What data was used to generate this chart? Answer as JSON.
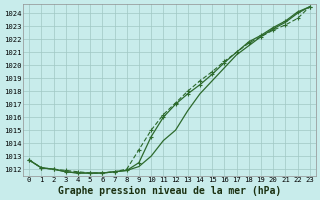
{
  "title": "Graphe pression niveau de la mer (hPa)",
  "bg_color": "#c8eceb",
  "grid_color": "#a0c8c4",
  "line_color": "#2d6a2d",
  "x": [
    0,
    1,
    2,
    3,
    4,
    5,
    6,
    7,
    8,
    9,
    10,
    11,
    12,
    13,
    14,
    15,
    16,
    17,
    18,
    19,
    20,
    21,
    22,
    23
  ],
  "line1": [
    1012.7,
    1012.1,
    1012.0,
    1011.8,
    1011.7,
    1011.7,
    1011.7,
    1011.8,
    1011.9,
    1012.2,
    1013.0,
    1014.2,
    1015.0,
    1016.5,
    1017.8,
    1018.8,
    1019.8,
    1020.8,
    1021.5,
    1022.2,
    1022.8,
    1023.3,
    1024.0,
    1024.5
  ],
  "line2": [
    1012.7,
    1012.1,
    1012.0,
    1011.8,
    1011.7,
    1011.7,
    1011.7,
    1011.8,
    1011.9,
    1012.5,
    1014.5,
    1016.0,
    1017.0,
    1017.8,
    1018.5,
    1019.3,
    1020.2,
    1021.0,
    1021.8,
    1022.3,
    1022.9,
    1023.4,
    1024.1,
    1024.5
  ],
  "line3": [
    1012.7,
    1012.1,
    1012.0,
    1011.9,
    1011.8,
    1011.7,
    1011.7,
    1011.8,
    1012.0,
    1013.5,
    1015.0,
    1016.2,
    1017.1,
    1018.0,
    1018.8,
    1019.5,
    1020.3,
    1021.0,
    1021.7,
    1022.2,
    1022.7,
    1023.1,
    1023.6,
    1024.5
  ],
  "ylim": [
    1011.5,
    1024.7
  ],
  "yticks": [
    1012,
    1013,
    1014,
    1015,
    1016,
    1017,
    1018,
    1019,
    1020,
    1021,
    1022,
    1023,
    1024
  ],
  "xticks": [
    0,
    1,
    2,
    3,
    4,
    5,
    6,
    7,
    8,
    9,
    10,
    11,
    12,
    13,
    14,
    15,
    16,
    17,
    18,
    19,
    20,
    21,
    22,
    23
  ],
  "title_fontsize": 7.0,
  "tick_fontsize": 5.2
}
